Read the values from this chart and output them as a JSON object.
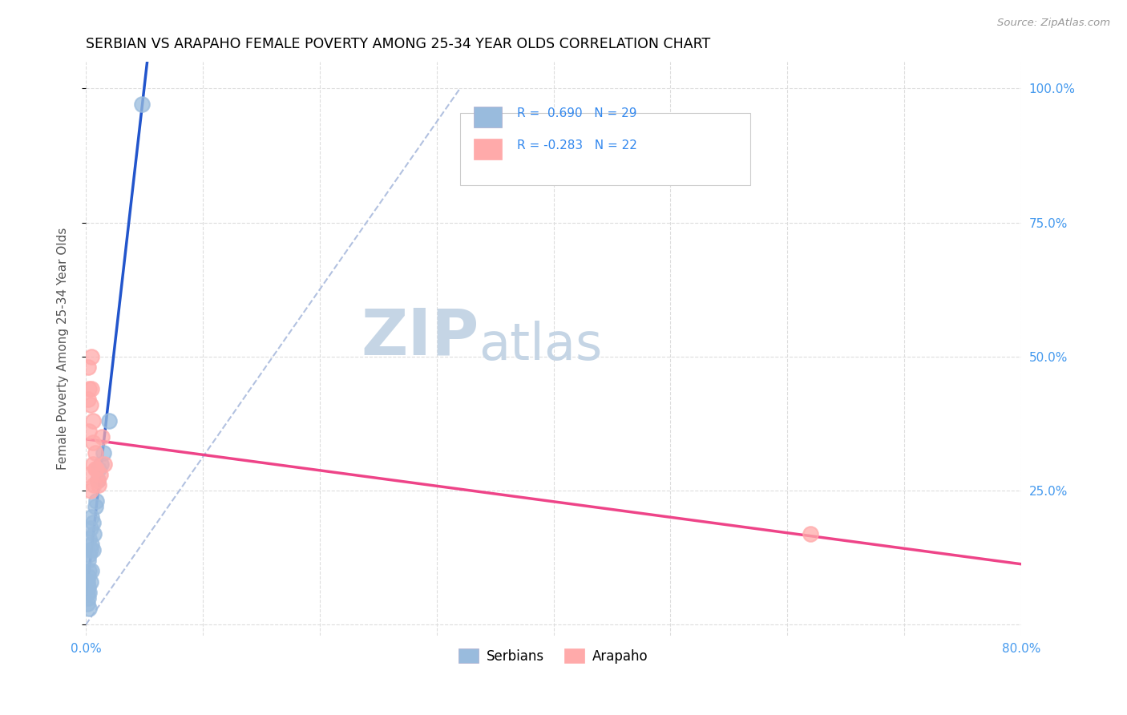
{
  "title": "SERBIAN VS ARAPAHO FEMALE POVERTY AMONG 25-34 YEAR OLDS CORRELATION CHART",
  "source": "Source: ZipAtlas.com",
  "ylabel": "Female Poverty Among 25-34 Year Olds",
  "xlim": [
    0.0,
    0.8
  ],
  "ylim": [
    -0.02,
    1.05
  ],
  "xticks": [
    0.0,
    0.1,
    0.2,
    0.3,
    0.4,
    0.5,
    0.6,
    0.7,
    0.8
  ],
  "xticklabels": [
    "0.0%",
    "",
    "",
    "",
    "",
    "",
    "",
    "",
    "80.0%"
  ],
  "yticks_right": [
    0.0,
    0.25,
    0.5,
    0.75,
    1.0
  ],
  "yticklabels_right": [
    "",
    "25.0%",
    "50.0%",
    "75.0%",
    "100.0%"
  ],
  "color_serbian": "#99BBDD",
  "color_arapaho": "#FFAAAA",
  "trendline_serbian": "#2255CC",
  "trendline_arapaho": "#EE4488",
  "diag_line_color": "#AABBDD",
  "watermark_zip": "ZIP",
  "watermark_atlas": "atlas",
  "watermark_color": "#C5D5E5",
  "serbian_x": [
    0.001,
    0.001,
    0.001,
    0.002,
    0.002,
    0.002,
    0.002,
    0.003,
    0.003,
    0.003,
    0.003,
    0.003,
    0.004,
    0.004,
    0.004,
    0.005,
    0.005,
    0.005,
    0.006,
    0.006,
    0.007,
    0.008,
    0.009,
    0.01,
    0.011,
    0.013,
    0.015,
    0.02,
    0.048
  ],
  "serbian_y": [
    0.04,
    0.06,
    0.08,
    0.05,
    0.07,
    0.09,
    0.12,
    0.03,
    0.06,
    0.1,
    0.13,
    0.16,
    0.08,
    0.14,
    0.18,
    0.1,
    0.15,
    0.2,
    0.14,
    0.19,
    0.17,
    0.22,
    0.23,
    0.27,
    0.29,
    0.3,
    0.32,
    0.38,
    0.97
  ],
  "arapaho_x": [
    0.001,
    0.002,
    0.002,
    0.003,
    0.003,
    0.004,
    0.004,
    0.005,
    0.005,
    0.006,
    0.006,
    0.006,
    0.007,
    0.008,
    0.008,
    0.009,
    0.01,
    0.011,
    0.012,
    0.014,
    0.016,
    0.62
  ],
  "arapaho_y": [
    0.28,
    0.42,
    0.48,
    0.36,
    0.44,
    0.25,
    0.41,
    0.44,
    0.5,
    0.34,
    0.38,
    0.3,
    0.26,
    0.29,
    0.32,
    0.29,
    0.27,
    0.26,
    0.28,
    0.35,
    0.3,
    0.17
  ]
}
